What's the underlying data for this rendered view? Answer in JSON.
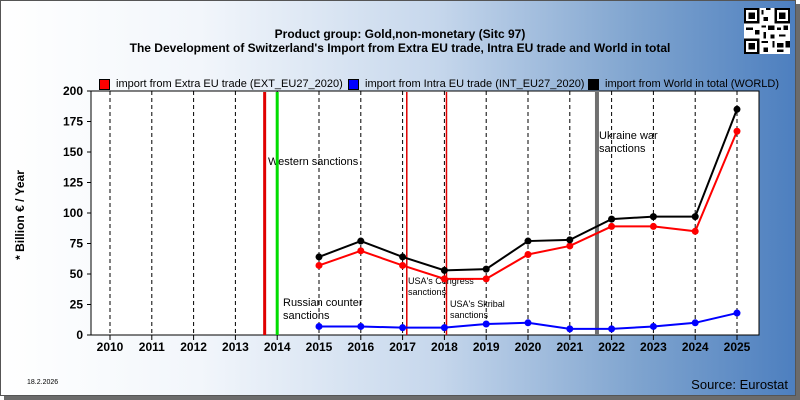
{
  "header": {
    "title_line1": "Product group: Gold,non-monetary (Sitc 97)",
    "title_line2": "The Development of Switzerland's Import from Extra EU trade, Intra EU trade and World in total"
  },
  "footer": {
    "date": "18.2.2026",
    "source": "Source: Eurostat"
  },
  "icons": {
    "qr": "qr-code-icon"
  },
  "chart_data": {
    "type": "line",
    "ylabel": "* Billion € / Year",
    "xlabel": "",
    "x": [
      "2010",
      "2011",
      "2012",
      "2013",
      "2014",
      "2015",
      "2016",
      "2017",
      "2018",
      "2019",
      "2020",
      "2021",
      "2022",
      "2023",
      "2024",
      "2025"
    ],
    "ylim": [
      0,
      200
    ],
    "yticks": [
      0,
      25,
      50,
      75,
      100,
      125,
      150,
      175,
      200
    ],
    "grid": "vertical dashed",
    "legend_position": "top",
    "series": [
      {
        "name": "import from Extra EU trade (EXT_EU27_2020)",
        "color": "#ff0000",
        "values": [
          null,
          null,
          null,
          null,
          null,
          57,
          69,
          57,
          46,
          46,
          66,
          73,
          89,
          89,
          85,
          167
        ]
      },
      {
        "name": "import from Intra EU trade (INT_EU27_2020)",
        "color": "#0000ff",
        "values": [
          null,
          null,
          null,
          null,
          null,
          7,
          7,
          6,
          6,
          9,
          10,
          5,
          5,
          7,
          10,
          18
        ]
      },
      {
        "name": "import from World in total (WORLD)",
        "color": "#000000",
        "values": [
          null,
          null,
          null,
          null,
          null,
          64,
          77,
          64,
          53,
          54,
          77,
          78,
          95,
          97,
          97,
          185
        ]
      }
    ],
    "events": [
      {
        "label": "Western sanctions",
        "year": 2013.7,
        "color": "#e00000",
        "width": 3
      },
      {
        "label": "Russian counter sanctions",
        "year": 2014.0,
        "color": "#00dd00",
        "width": 3
      },
      {
        "label": "USA's Congress sanctions",
        "year": 2017.1,
        "color": "#e00000",
        "width": 1.5
      },
      {
        "label": "USA's Skripal sanctions",
        "year": 2018.05,
        "color": "#e00000",
        "width": 1.5
      },
      {
        "label": "Ukraine war sanctions",
        "year": 2021.65,
        "color": "#707070",
        "width": 4
      }
    ]
  }
}
